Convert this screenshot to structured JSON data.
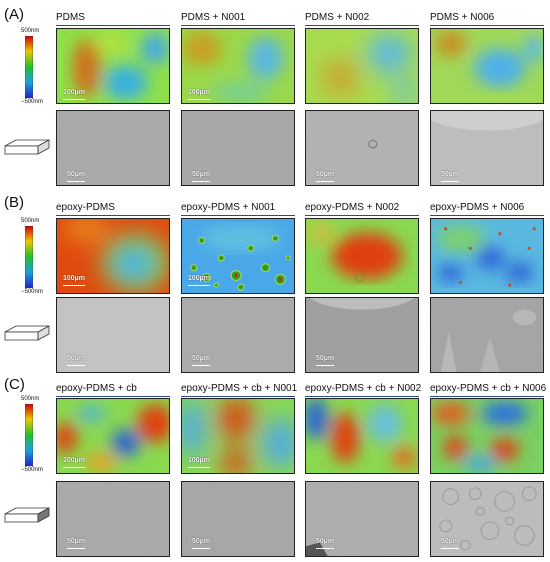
{
  "sections": [
    {
      "label": "(A)",
      "colorbar": {
        "top": "500nm",
        "bottom": "−500nm"
      },
      "columns": [
        "PDMS",
        "PDMS + N001",
        "PDMS + N002",
        "PDMS + N006"
      ],
      "afm_scale": "100µm",
      "sem_scale": "50µm"
    },
    {
      "label": "(B)",
      "colorbar": {
        "top": "500nm",
        "bottom": "−500nm"
      },
      "columns": [
        "epoxy-PDMS",
        "epoxy-PDMS + N001",
        "epoxy-PDMS + N002",
        "epoxy-PDMS + N006"
      ],
      "afm_scale": "100µm",
      "sem_scale": "50µm"
    },
    {
      "label": "(C)",
      "colorbar": {
        "top": "500nm",
        "bottom": "−500nm"
      },
      "columns": [
        "epoxy-PDMS + cb",
        "epoxy-PDMS + cb + N001",
        "epoxy-PDMS + cb + N002",
        "epoxy-PDMS + cb + N006"
      ],
      "afm_scale": "100µm",
      "sem_scale": "50µm"
    }
  ],
  "colors": {
    "heat_high": "#d42a00",
    "heat_mid": "#6ed84a",
    "heat_low": "#1a4fd8",
    "sem_gray": "#a9a9a9"
  }
}
